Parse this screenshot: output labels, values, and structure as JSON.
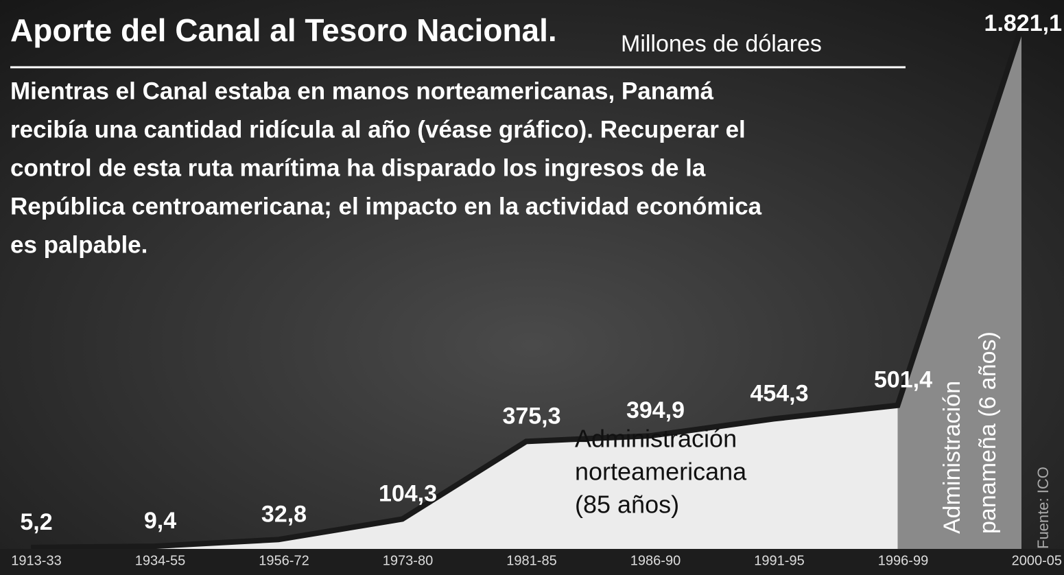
{
  "chart_data": {
    "type": "area",
    "title": "Aporte del Canal al Tesoro Nacional.",
    "subtitle": "Millones de dólares",
    "description": [
      "Mientras el Canal estaba en manos norteamericanas, Panamá",
      "recibía una cantidad ridícula al año (véase gráfico). Recuperar el",
      "control de esta ruta marítima ha disparado los ingresos de la",
      "República centroamericana; el impacto en la actividad económica",
      "es palpable."
    ],
    "categories": [
      "1913-33",
      "1934-55",
      "1956-72",
      "1973-80",
      "1981-85",
      "1986-90",
      "1991-95",
      "1996-99",
      "2000-05"
    ],
    "values": [
      5.2,
      9.4,
      32.8,
      104.3,
      375.3,
      394.9,
      454.3,
      501.4,
      1821.1
    ],
    "value_labels": [
      "5,2",
      "9,4",
      "32,8",
      "104,3",
      "375,3",
      "394,9",
      "454,3",
      "501,4",
      "1.821,1"
    ],
    "annotations": {
      "north": [
        "Administración",
        "norteamericana",
        "(85 años)"
      ],
      "pan": [
        "Administración",
        "panameña (6 años)"
      ],
      "source": "Fuente: ICO"
    },
    "colors": {
      "north": "#ececec",
      "pan": "#8a8a8a",
      "line": "#1a1a1a"
    }
  }
}
